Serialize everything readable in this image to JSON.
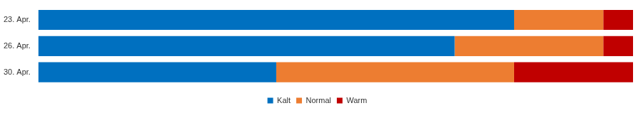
{
  "chart_data": {
    "type": "bar",
    "orientation": "horizontal",
    "stacked": true,
    "categories": [
      "23. Apr.",
      "26. Apr.",
      "30. Apr."
    ],
    "series": [
      {
        "name": "Kalt",
        "color": "#0070c0",
        "values": [
          80,
          70,
          40
        ]
      },
      {
        "name": "Normal",
        "color": "#ed7d31",
        "values": [
          15,
          25,
          40
        ]
      },
      {
        "name": "Warm",
        "color": "#c00000",
        "values": [
          5,
          5,
          20
        ]
      }
    ],
    "xlim": [
      0,
      100
    ],
    "grid": false,
    "legend": "bottom",
    "tick_labels": "y"
  }
}
